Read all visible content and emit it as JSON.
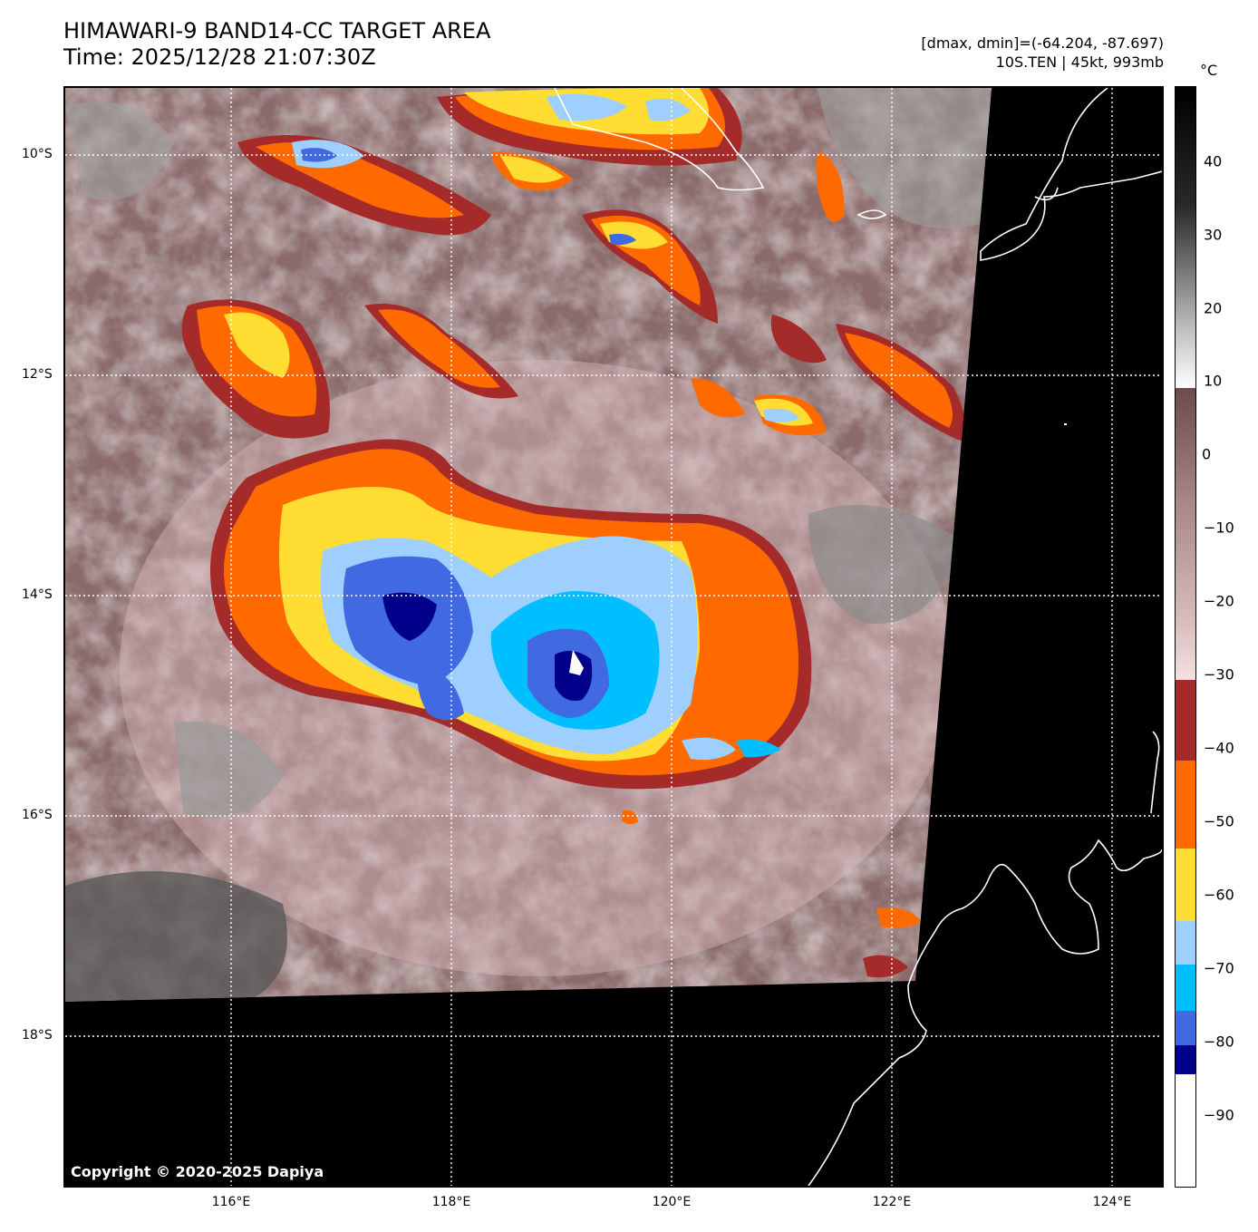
{
  "header": {
    "title_line1": "HIMAWARI-9 BAND14-CC TARGET AREA",
    "title_line2": "Time: 2025/12/28 21:07:30Z",
    "meta_line1": "[dmax, dmin]=(-64.204, -87.697)",
    "meta_line2": "10S.TEN | 45kt, 993mb"
  },
  "map": {
    "copyright": "Copyright © 2020-2025 Dapiya",
    "lat_labels": [
      "10°S",
      "12°S",
      "14°S",
      "16°S",
      "18°S"
    ],
    "lon_labels": [
      "116°E",
      "118°E",
      "120°E",
      "122°E",
      "124°E"
    ],
    "storm_center": {
      "lon": 119.1,
      "lat": -14.6
    },
    "colors": {
      "background_black": "#000000",
      "coastline": "#ffffff",
      "grid": "#ffffff"
    }
  },
  "colorbar": {
    "unit": "°C",
    "ticks": [
      "40",
      "30",
      "20",
      "10",
      "0",
      "−10",
      "−20",
      "−30",
      "−40",
      "−50",
      "−60",
      "−70",
      "−80",
      "−90"
    ],
    "range": [
      -100,
      50
    ],
    "segments": [
      {
        "from": 50,
        "to": 10,
        "color": "gradient-gray"
      },
      {
        "from": 10,
        "to": -30,
        "color": "gradient-brown-pink"
      },
      {
        "from": -30,
        "to": -41,
        "color": "#a52a2a"
      },
      {
        "from": -41,
        "to": -53,
        "color": "#ff6a00"
      },
      {
        "from": -53,
        "to": -63,
        "color": "#ffdd33"
      },
      {
        "from": -63,
        "to": -69,
        "color": "#9ecfff"
      },
      {
        "from": -69,
        "to": -76,
        "color": "#00bfff"
      },
      {
        "from": -76,
        "to": -81,
        "color": "#4169e1"
      },
      {
        "from": -81,
        "to": -85,
        "color": "#00008b"
      },
      {
        "from": -85,
        "to": -100,
        "color": "#ffffff"
      }
    ]
  }
}
